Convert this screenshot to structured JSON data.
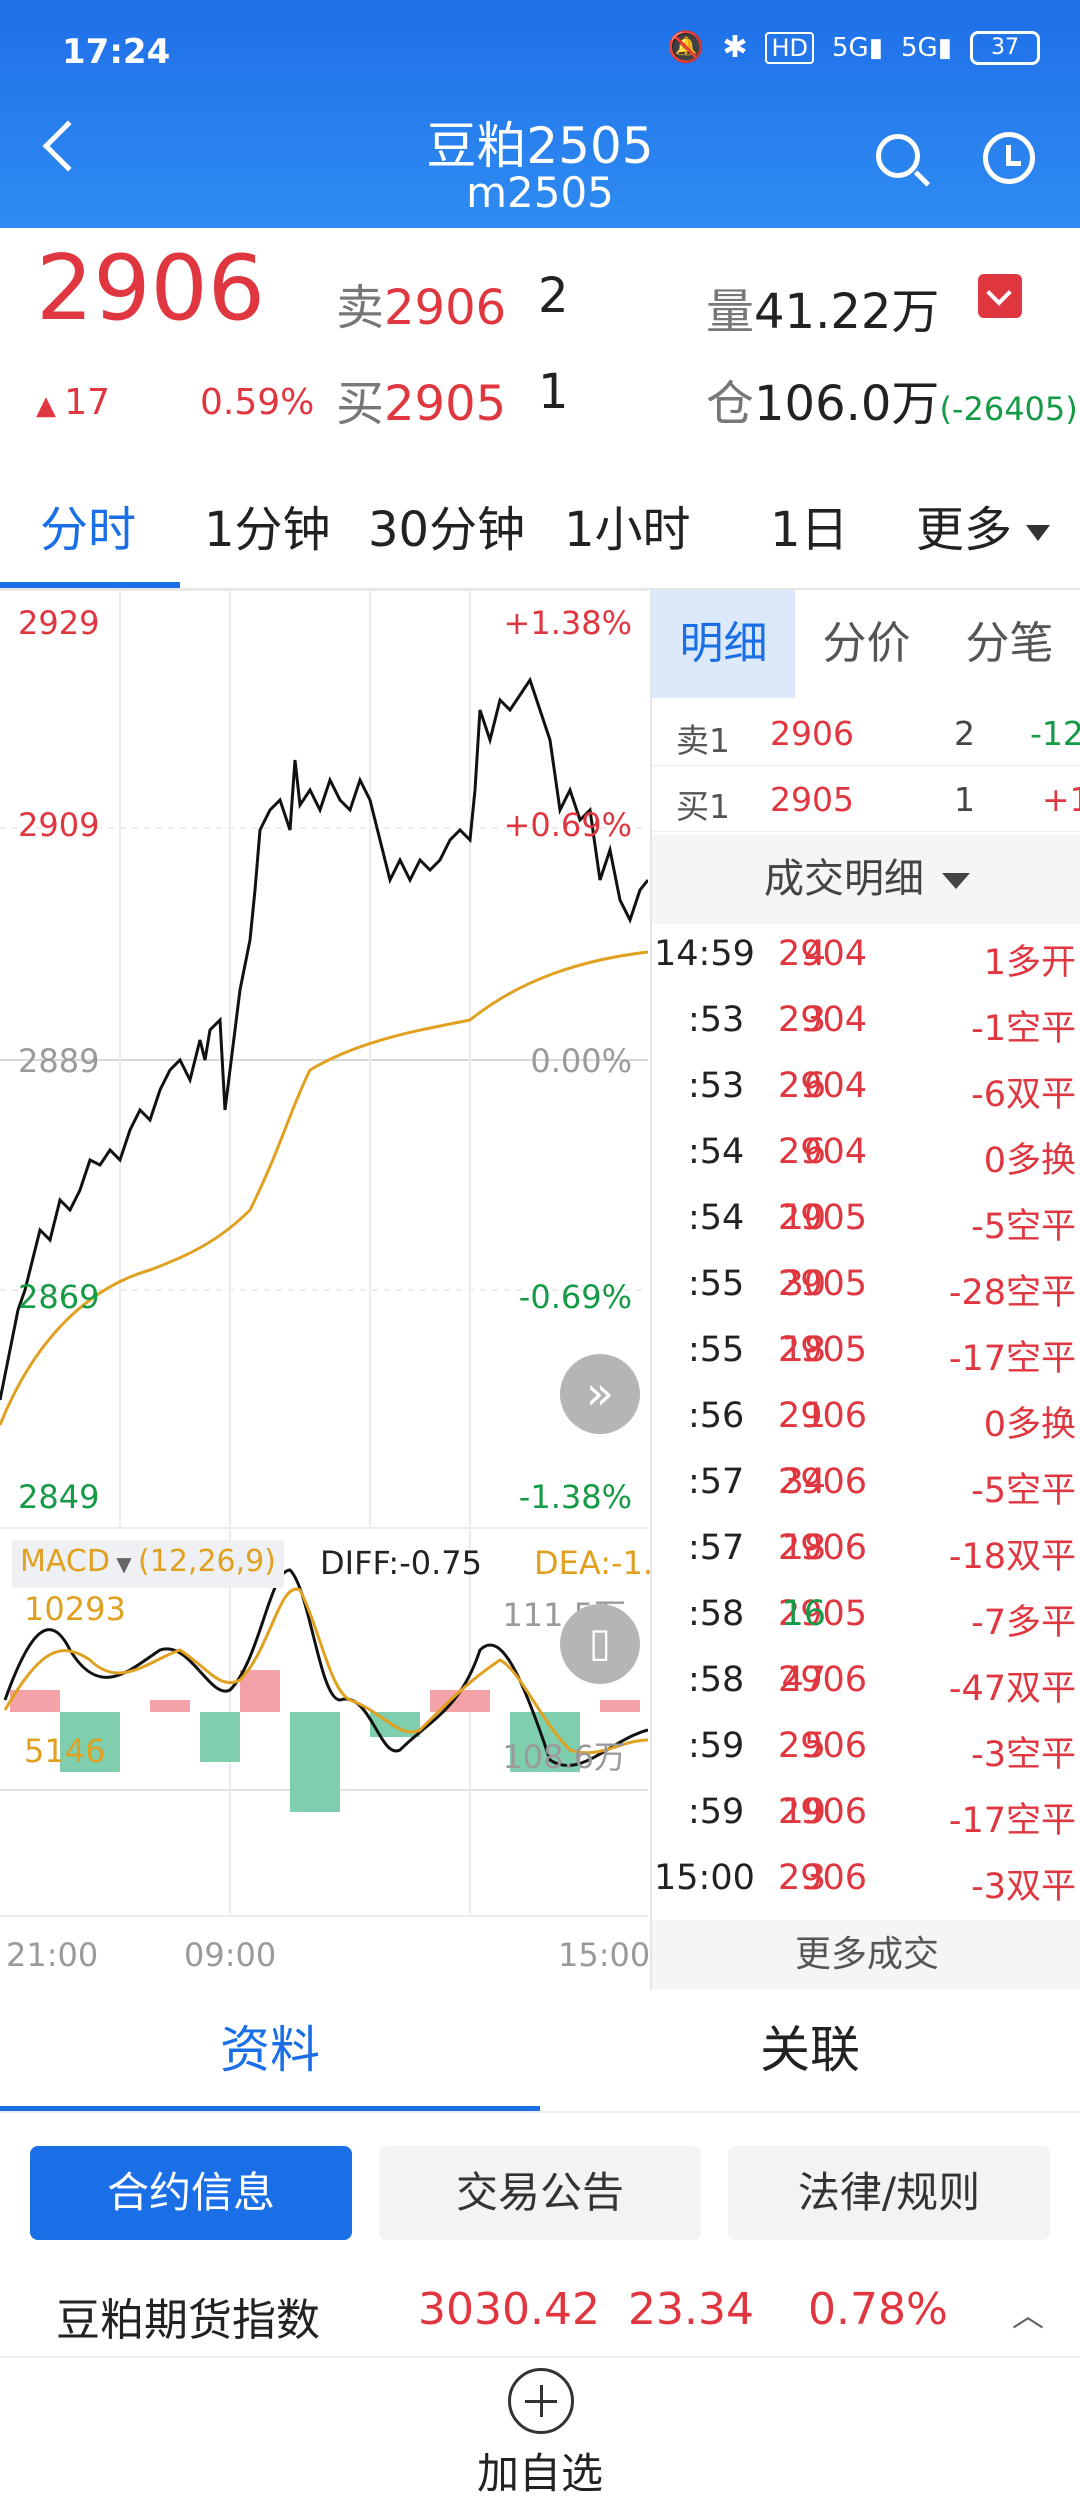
{
  "status_bar": {
    "time": "17:24",
    "battery": "37",
    "icons": [
      "mute-icon",
      "bluetooth-icon",
      "hd-icon",
      "signal-5g-icon",
      "signal-5g-icon",
      "battery-icon"
    ]
  },
  "header": {
    "title": "豆粕2505",
    "subtitle": "m2505"
  },
  "quote": {
    "last": "2906",
    "change": "17",
    "change_pct": "0.59%",
    "sell_label": "卖",
    "sell_price": "2906",
    "sell_qty": "2",
    "buy_label": "买",
    "buy_price": "2905",
    "buy_qty": "1",
    "volume_label": "量",
    "volume": "41.22万",
    "oi_label": "仓",
    "oi": "106.0万",
    "oi_change": "(-26405)"
  },
  "period_tabs": [
    "分时",
    "1分钟",
    "30分钟",
    "1小时",
    "1日",
    "更多"
  ],
  "chart": {
    "price_ticks": [
      "2929",
      "2909",
      "2889",
      "2869",
      "2849"
    ],
    "pct_ticks": [
      "+1.38%",
      "+0.69%",
      "0.00%",
      "-0.69%",
      "-1.38%"
    ],
    "macd_label": "MACD",
    "macd_params": "(12,26,9)",
    "diff": "DIFF:-0.75",
    "dea": "DEA:-1.",
    "macd_top": "10293",
    "macd_mid": "5146",
    "vol_top": "111.5万",
    "vol_mid": "108.6万",
    "time_ticks": [
      "21:00",
      "09:00",
      "15:00"
    ]
  },
  "panel": {
    "tabs": [
      "明细",
      "分价",
      "分笔"
    ],
    "sell1": {
      "label": "卖1",
      "price": "2906",
      "qty": "2",
      "chg": "-12"
    },
    "buy1": {
      "label": "买1",
      "price": "2905",
      "qty": "1",
      "chg": "+1"
    },
    "deal_header": "成交明细",
    "trades": [
      {
        "t": "14:59",
        "p": "2904",
        "q": "4",
        "d": "1多开",
        "qc": "red"
      },
      {
        "t": ":53",
        "p": "2904",
        "q": "3",
        "d": "-1空平",
        "qc": "red"
      },
      {
        "t": ":53",
        "p": "2904",
        "q": "6",
        "d": "-6双平",
        "qc": "red"
      },
      {
        "t": ":54",
        "p": "2904",
        "q": "6",
        "d": "0多换",
        "qc": "red"
      },
      {
        "t": ":54",
        "p": "2905",
        "q": "10",
        "d": "-5空平",
        "qc": "red"
      },
      {
        "t": ":55",
        "p": "2905",
        "q": "30",
        "d": "-28空平",
        "qc": "red"
      },
      {
        "t": ":55",
        "p": "2905",
        "q": "18",
        "d": "-17空平",
        "qc": "red"
      },
      {
        "t": ":56",
        "p": "2906",
        "q": "1",
        "d": "0多换",
        "qc": "red"
      },
      {
        "t": ":57",
        "p": "2906",
        "q": "34",
        "d": "-5空平",
        "qc": "red"
      },
      {
        "t": ":57",
        "p": "2906",
        "q": "18",
        "d": "-18双平",
        "qc": "red"
      },
      {
        "t": ":58",
        "p": "2905",
        "q": "16",
        "d": "-7多平",
        "qc": "green"
      },
      {
        "t": ":58",
        "p": "2906",
        "q": "47",
        "d": "-47双平",
        "qc": "red"
      },
      {
        "t": ":59",
        "p": "2906",
        "q": "5",
        "d": "-3空平",
        "qc": "red"
      },
      {
        "t": ":59",
        "p": "2906",
        "q": "19",
        "d": "-17空平",
        "qc": "red"
      },
      {
        "t": "15:00",
        "p": "2906",
        "q": "3",
        "d": "-3双平",
        "qc": "red"
      }
    ],
    "more_deals": "更多成交"
  },
  "sections": {
    "tab1": "资料",
    "tab2": "关联"
  },
  "buttons": {
    "b1": "合约信息",
    "b2": "交易公告",
    "b3": "法律/规则"
  },
  "index_row": {
    "name": "豆粕期货指数",
    "value": "3030.42",
    "change": "23.34",
    "pct": "0.78%"
  },
  "add": {
    "label": "加自选"
  },
  "colors": {
    "brand": "#1a6fe6",
    "up": "#e0363f",
    "down": "#159a46",
    "avg_line": "#e0a020"
  }
}
